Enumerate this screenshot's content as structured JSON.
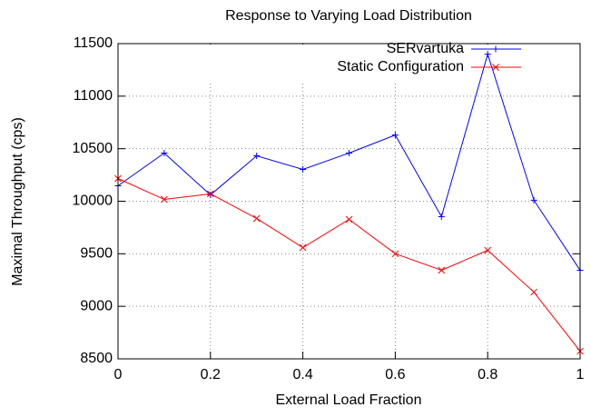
{
  "chart_data": {
    "type": "line",
    "title": "Response to Varying Load Distribution",
    "x_label": "External Load Fraction",
    "y_label": "Maximal Throughput (cps)",
    "x": [
      0,
      0.1,
      0.2,
      0.3,
      0.4,
      0.5,
      0.6,
      0.7,
      0.8,
      0.9,
      1
    ],
    "series": [
      {
        "name": "SERvartuka",
        "color": "#0000ff",
        "marker": "+",
        "values": [
          10147,
          10458,
          10060,
          10432,
          10303,
          10458,
          10630,
          9853,
          11400,
          10010,
          9343
        ]
      },
      {
        "name": "Static Configuration",
        "color": "#ff0000",
        "marker": "x",
        "values": [
          10216,
          10017,
          10070,
          9836,
          9559,
          9827,
          9500,
          9343,
          9533,
          9135,
          8573
        ]
      }
    ],
    "xlim": [
      0,
      1
    ],
    "xticks": [
      0,
      0.2,
      0.4,
      0.6,
      0.8,
      1
    ],
    "ylim": [
      8500,
      11500
    ],
    "yticks": [
      8500,
      9000,
      9500,
      10000,
      10500,
      11000,
      11500
    ],
    "grid": true,
    "legend": "top-right"
  }
}
